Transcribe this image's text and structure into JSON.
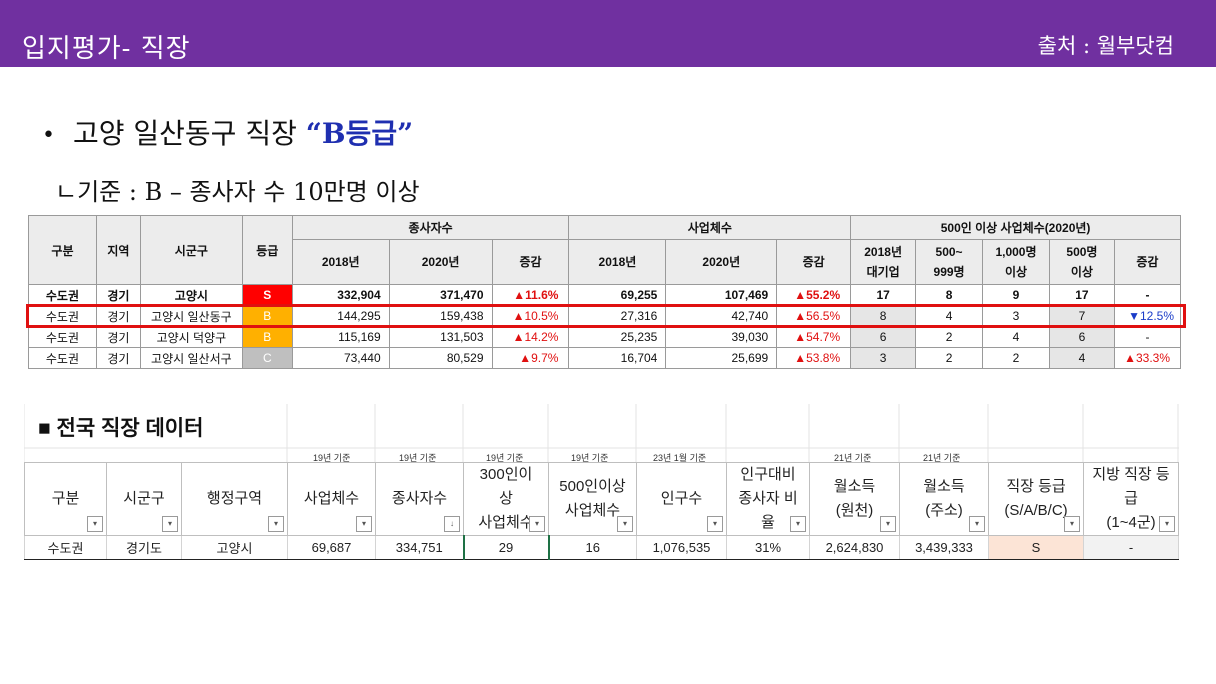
{
  "header": {
    "title": "입지평가- 직장",
    "source": "출처 : 월부닷컴"
  },
  "bullet": {
    "main": "고양 일산동구 직장 ",
    "accent": "“B등급”"
  },
  "criteria": "ㄴ기준 : B – 종사자 수 10만명 이상",
  "table1": {
    "col_region_group": "구분",
    "col_region": "지역",
    "col_city": "시군구",
    "col_grade": "등급",
    "group_workers": "종사자수",
    "group_businesses": "사업체수",
    "group_500": "500인 이상 사업체수(2020년)",
    "sub_2018": "2018년",
    "sub_2020": "2020년",
    "sub_change": "증감",
    "sub_big_line1": "2018년",
    "sub_big_line2": "대기업",
    "sub_500_line1": "500~",
    "sub_500_line2": "999명",
    "sub_1000_line1": "1,000명",
    "sub_1000_line2": "이상",
    "sub_500p_line1": "500명",
    "sub_500p_line2": "이상",
    "rows": [
      {
        "group": "수도권",
        "region": "경기",
        "city": "고양시",
        "grade": "S",
        "w2018": "332,904",
        "w2020": "371,470",
        "wchg": "▲11.6%",
        "b2018": "69,255",
        "b2020": "107,469",
        "bchg": "▲55.2%",
        "big": "17",
        "c500": "8",
        "c1000": "9",
        "c500p": "17",
        "chg": "-"
      },
      {
        "group": "수도권",
        "region": "경기",
        "city": "고양시 일산동구",
        "grade": "B",
        "w2018": "144,295",
        "w2020": "159,438",
        "wchg": "▲10.5%",
        "b2018": "27,316",
        "b2020": "42,740",
        "bchg": "▲56.5%",
        "big": "8",
        "c500": "4",
        "c1000": "3",
        "c500p": "7",
        "chg": "▼12.5%"
      },
      {
        "group": "수도권",
        "region": "경기",
        "city": "고양시 덕양구",
        "grade": "B",
        "w2018": "115,169",
        "w2020": "131,503",
        "wchg": "▲14.2%",
        "b2018": "25,235",
        "b2020": "39,030",
        "bchg": "▲54.7%",
        "big": "6",
        "c500": "2",
        "c1000": "4",
        "c500p": "6",
        "chg": "-"
      },
      {
        "group": "수도권",
        "region": "경기",
        "city": "고양시 일산서구",
        "grade": "C",
        "w2018": "73,440",
        "w2020": "80,529",
        "wchg": "▲9.7%",
        "b2018": "16,704",
        "b2020": "25,699",
        "bchg": "▲53.8%",
        "big": "3",
        "c500": "2",
        "c1000": "2",
        "c500p": "4",
        "chg": "▲33.3%"
      }
    ]
  },
  "section2": {
    "title": "■ 전국 직장 데이터",
    "notes": [
      "19년 기준",
      "19년 기준",
      "19년 기준",
      "19년 기준",
      "23년 1월 기준",
      "21년 기준",
      "21년 기준"
    ],
    "headers": [
      {
        "lines": [
          "구분"
        ],
        "filter": "▾"
      },
      {
        "lines": [
          "시군구"
        ],
        "filter": "▾"
      },
      {
        "lines": [
          "행정구역"
        ],
        "filter": "▾"
      },
      {
        "lines": [
          "사업체수"
        ],
        "filter": "▾"
      },
      {
        "lines": [
          "종사자수"
        ],
        "filter": "↓"
      },
      {
        "lines": [
          "300인이",
          "상",
          "사업체수"
        ],
        "filter": "▾"
      },
      {
        "lines": [
          "500인이상",
          "사업체수"
        ],
        "filter": "▾"
      },
      {
        "lines": [
          "인구수"
        ],
        "filter": "▾"
      },
      {
        "lines": [
          "인구대비",
          "종사자 비",
          "율"
        ],
        "filter": "▾"
      },
      {
        "lines": [
          "월소득",
          "(원천)"
        ],
        "filter": "▾"
      },
      {
        "lines": [
          "월소득",
          "(주소)"
        ],
        "filter": "▾"
      },
      {
        "lines": [
          "직장 등급",
          "(S/A/B/C)"
        ],
        "filter": "▾"
      },
      {
        "lines": [
          "지방 직장 등",
          "급",
          "(1~4군)"
        ],
        "filter": "▾"
      }
    ],
    "row": [
      "수도권",
      "경기도",
      "고양시",
      "69,687",
      "334,751",
      "29",
      "16",
      "1,076,535",
      "31%",
      "2,624,830",
      "3,439,333",
      "S",
      "-"
    ]
  },
  "colors": {
    "header_bg": "#7030a0",
    "accent_blue": "#1f2fb0",
    "grade_s": "#ff0000",
    "grade_b": "#ffb000",
    "grade_c": "#bfbfbf",
    "increase": "#e01010",
    "decrease": "#1a3cc8",
    "highlight_border": "#e01010"
  }
}
